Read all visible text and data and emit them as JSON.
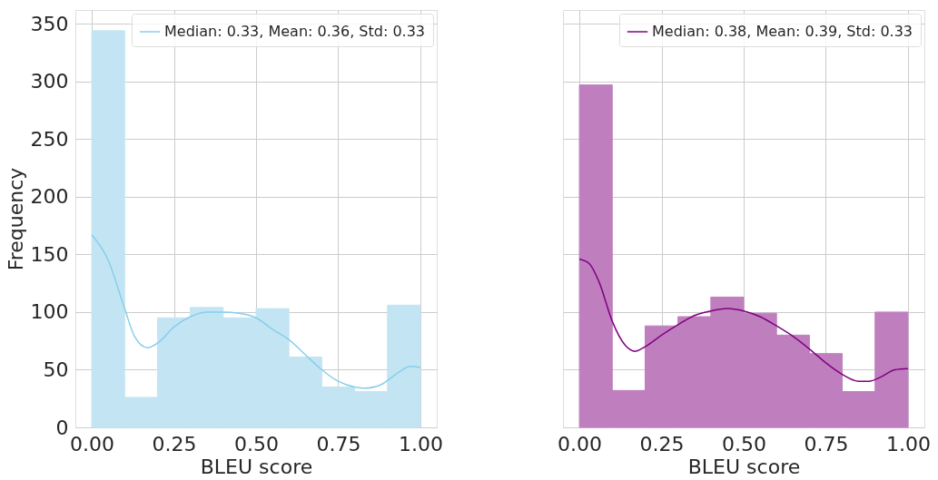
{
  "chart_data": [
    {
      "type": "histogram",
      "xlabel": "BLEU score",
      "ylabel": "Frequency",
      "bins": [
        0,
        0.1,
        0.2,
        0.3,
        0.4,
        0.5,
        0.6,
        0.7,
        0.8,
        0.9,
        1.0
      ],
      "xlim": [
        -0.05,
        1.05
      ],
      "xticks": [
        {
          "value": 0,
          "label": "0.00"
        },
        {
          "value": 0.25,
          "label": "0.25"
        },
        {
          "value": 0.5,
          "label": "0.50"
        },
        {
          "value": 0.75,
          "label": "0.75"
        },
        {
          "value": 1,
          "label": "1.00"
        }
      ],
      "ylim": [
        0,
        362
      ],
      "yticks": [
        0,
        50,
        100,
        150,
        200,
        250,
        300,
        350
      ],
      "grid": true,
      "legend": "top right",
      "series": [
        {
          "color": "#c3e5f3",
          "values": [
            344,
            26,
            95,
            104,
            95,
            103,
            61,
            35,
            31,
            106
          ]
        },
        {
          "type": "line",
          "name": "Median: 0.33, Mean: 0.36, Std: 0.33",
          "color": "#87ceeb",
          "x": [
            0,
            0.05,
            0.1,
            0.13,
            0.17,
            0.2,
            0.25,
            0.3,
            0.35,
            0.4,
            0.45,
            0.5,
            0.55,
            0.6,
            0.65,
            0.7,
            0.75,
            0.8,
            0.83,
            0.88,
            0.93,
            0.97,
            1.0
          ],
          "values": [
            167,
            145,
            103,
            79,
            69,
            73,
            87,
            96,
            100,
            100,
            99,
            95,
            85,
            76,
            63,
            50,
            40,
            35,
            34,
            37,
            47,
            53,
            52
          ]
        }
      ]
    },
    {
      "type": "histogram",
      "xlabel": "BLEU score",
      "bins": [
        0,
        0.1,
        0.2,
        0.3,
        0.4,
        0.5,
        0.6,
        0.7,
        0.8,
        0.9,
        1.0
      ],
      "xlim": [
        -0.05,
        1.05
      ],
      "xticks": [
        {
          "value": 0,
          "label": "0.00"
        },
        {
          "value": 0.25,
          "label": "0.25"
        },
        {
          "value": 0.5,
          "label": "0.50"
        },
        {
          "value": 0.75,
          "label": "0.75"
        },
        {
          "value": 1,
          "label": "1.00"
        }
      ],
      "ylim": [
        0,
        362
      ],
      "yticks": [
        0,
        50,
        100,
        150,
        200,
        250,
        300,
        350
      ],
      "grid": true,
      "legend": "top right",
      "tick_labels": "x",
      "series": [
        {
          "color": "#bf7fbf",
          "values": [
            297,
            32,
            88,
            96,
            113,
            99,
            80,
            64,
            31,
            100
          ]
        },
        {
          "type": "line",
          "name": "Median: 0.38, Mean: 0.39, Std: 0.33",
          "color": "#800080",
          "x": [
            0,
            0.03,
            0.06,
            0.1,
            0.14,
            0.17,
            0.2,
            0.25,
            0.3,
            0.35,
            0.4,
            0.45,
            0.5,
            0.55,
            0.6,
            0.65,
            0.7,
            0.75,
            0.8,
            0.85,
            0.88,
            0.92,
            0.96,
            1.0
          ],
          "values": [
            146,
            142,
            126,
            92,
            71,
            66,
            70,
            80,
            89,
            97,
            101,
            103,
            101,
            96,
            88,
            79,
            68,
            56,
            46,
            40,
            40,
            44,
            50,
            51
          ]
        }
      ]
    }
  ]
}
